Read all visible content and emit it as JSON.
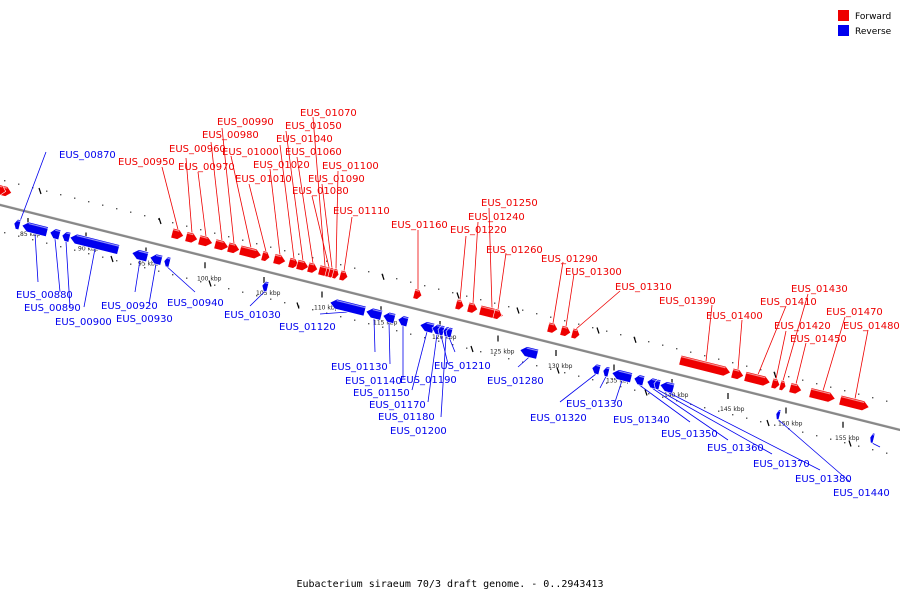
{
  "colors": {
    "forward": "#ee0000",
    "reverse": "#0000ee",
    "backbone": "#888888"
  },
  "legend": [
    {
      "label": "Forward",
      "color": "#ee0000"
    },
    {
      "label": "Reverse",
      "color": "#0000ee"
    }
  ],
  "title": "Eubacterium siraeum 70/3 draft genome. - 0..2943413",
  "scale": {
    "labels": [
      "85 kbp",
      "90 kbp",
      "95 kbp",
      "100 kbp",
      "105 kbp",
      "110 kbp",
      "115 kbp",
      "120 kbp",
      "125 kbp",
      "130 kbp",
      "135 kbp",
      "140 kbp",
      "145 kbp",
      "150 kbp",
      "155 kbp"
    ]
  },
  "genes": {
    "forward": [
      "EUS_00950",
      "EUS_00960",
      "EUS_00970",
      "EUS_00980",
      "EUS_00990",
      "EUS_01000",
      "EUS_01010",
      "EUS_01020",
      "EUS_01040",
      "EUS_01050",
      "EUS_01060",
      "EUS_01070",
      "EUS_01080",
      "EUS_01090",
      "EUS_01100",
      "EUS_01110",
      "EUS_01160",
      "EUS_01220",
      "EUS_01240",
      "EUS_01250",
      "EUS_01260",
      "EUS_01290",
      "EUS_01300",
      "EUS_01310",
      "EUS_01390",
      "EUS_01400",
      "EUS_01410",
      "EUS_01420",
      "EUS_01430",
      "EUS_01450",
      "EUS_01470",
      "EUS_01480"
    ],
    "reverse": [
      "EUS_00870",
      "EUS_00880",
      "EUS_00890",
      "EUS_00900",
      "EUS_00920",
      "EUS_00930",
      "EUS_00940",
      "EUS_01030",
      "EUS_01120",
      "EUS_01130",
      "EUS_01140",
      "EUS_01150",
      "EUS_01170",
      "EUS_01180",
      "EUS_01190",
      "EUS_01200",
      "EUS_01210",
      "EUS_01280",
      "EUS_01320",
      "EUS_01330",
      "EUS_01340",
      "EUS_01350",
      "EUS_01360",
      "EUS_01370",
      "EUS_01380",
      "EUS_01440"
    ]
  }
}
